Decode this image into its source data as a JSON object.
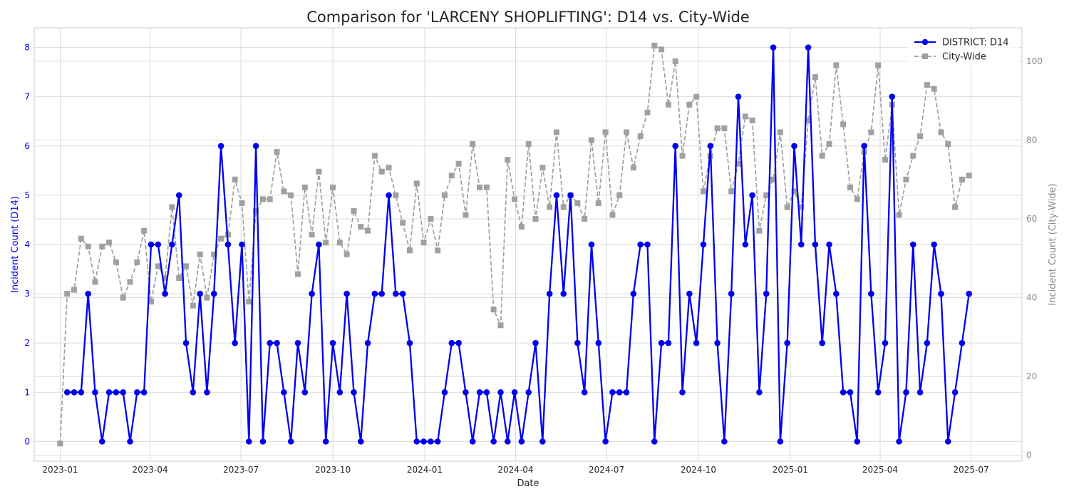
{
  "chart_data": {
    "type": "line",
    "title": "Comparison for 'LARCENY SHOPLIFTING': D14 vs. City-Wide",
    "xlabel": "Date",
    "ylabel_left": "Incident Count (D14)",
    "ylabel_right": "Incident Count (City-Wide)",
    "x_ticks": [
      "2023-01",
      "2023-04",
      "2023-07",
      "2023-10",
      "2024-01",
      "2024-04",
      "2024-07",
      "2024-10",
      "2025-01",
      "2025-04",
      "2025-07"
    ],
    "y_left_ticks": [
      "0",
      "1",
      "2",
      "3",
      "4",
      "5",
      "6",
      "7",
      "8"
    ],
    "y_right_ticks": [
      "0",
      "20",
      "40",
      "60",
      "80",
      "100"
    ],
    "x_range": [
      "2022-12-06",
      "2025-08-21"
    ],
    "ylim_left": [
      -0.4,
      8.4
    ],
    "ylim_right": [
      -1.5,
      108.5
    ],
    "grid": true,
    "legend_position": "top-right",
    "start_date": "2023-01-01",
    "interval_days": 7,
    "series": [
      {
        "name": "DISTRICT: D14",
        "axis": "left",
        "color": "#0000ee",
        "marker": "circle",
        "start_index": 1,
        "values": [
          1,
          1,
          1,
          3,
          1,
          0,
          1,
          1,
          1,
          0,
          1,
          1,
          4,
          4,
          3,
          4,
          5,
          2,
          1,
          3,
          1,
          3,
          6,
          4,
          2,
          4,
          0,
          6,
          0,
          2,
          2,
          1,
          0,
          2,
          1,
          3,
          4,
          0,
          2,
          1,
          3,
          1,
          0,
          2,
          3,
          3,
          5,
          3,
          3,
          2,
          0,
          0,
          0,
          0,
          1,
          2,
          2,
          1,
          0,
          1,
          1,
          0,
          1,
          0,
          1,
          0,
          1,
          2,
          0,
          3,
          5,
          3,
          5,
          2,
          1,
          4,
          2,
          0,
          1,
          1,
          1,
          3,
          4,
          4,
          0,
          2,
          2,
          6,
          1,
          3,
          2,
          4,
          6,
          2,
          0,
          3,
          7,
          4,
          5,
          1,
          3,
          8,
          0,
          2,
          6,
          4,
          8,
          4,
          2,
          4,
          3,
          1,
          1,
          0,
          6,
          3,
          1,
          2,
          7,
          0,
          1,
          4,
          1,
          2,
          4,
          3,
          0,
          1,
          2,
          3
        ]
      },
      {
        "name": "City-Wide",
        "axis": "right",
        "color": "#a0a0a0",
        "marker": "square",
        "start_index": 0,
        "values": [
          3,
          41,
          42,
          55,
          53,
          44,
          53,
          54,
          49,
          40,
          44,
          49,
          57,
          39,
          48,
          45,
          63,
          45,
          48,
          38,
          51,
          40,
          51,
          55,
          56,
          70,
          64,
          39,
          62,
          65,
          65,
          77,
          67,
          66,
          46,
          68,
          56,
          72,
          54,
          68,
          54,
          51,
          62,
          58,
          57,
          76,
          72,
          73,
          66,
          59,
          52,
          69,
          54,
          60,
          52,
          66,
          71,
          74,
          61,
          79,
          68,
          68,
          37,
          33,
          75,
          65,
          58,
          79,
          60,
          73,
          63,
          82,
          63,
          66,
          64,
          60,
          80,
          64,
          82,
          61,
          66,
          82,
          73,
          81,
          87,
          104,
          103,
          89,
          100,
          76,
          89,
          91,
          67,
          76,
          83,
          83,
          67,
          74,
          86,
          85,
          57,
          66,
          70,
          82,
          63,
          67,
          63,
          85,
          96,
          76,
          79,
          99,
          84,
          68,
          65,
          77,
          82,
          99,
          75,
          89,
          61,
          70,
          76,
          81,
          94,
          93,
          82,
          79,
          63,
          70,
          71
        ]
      }
    ]
  }
}
